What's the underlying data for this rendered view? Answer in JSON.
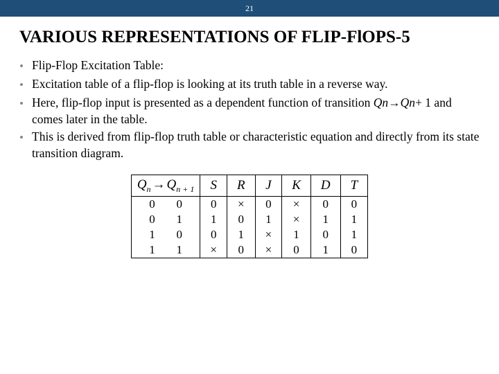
{
  "header": {
    "page_number": "21"
  },
  "title": "VARIOUS REPRESENTATIONS OF FLIP-FlOPS-5",
  "bullets": [
    {
      "bold": true,
      "text": "Flip-Flop Excitation Table:"
    },
    {
      "bold": false,
      "text": "Excitation table of a flip-flop is looking at its truth table in a reverse way."
    },
    {
      "bold": false,
      "html": "Here, flip-flop input is presented as a dependent function of transition <span class=\"ital\">Qn</span>→<span class=\"ital\">Qn</span>+ 1 and comes later in the table."
    },
    {
      "bold": false,
      "text": "This is derived from flip-flop truth table or characteristic equation and directly from its state transition diagram."
    }
  ],
  "table": {
    "type": "table",
    "columns": [
      "Qn → Qn+1",
      "S",
      "R",
      "J",
      "K",
      "D",
      "T"
    ],
    "transition_pairs": [
      [
        "0",
        "0"
      ],
      [
        "0",
        "1"
      ],
      [
        "1",
        "0"
      ],
      [
        "1",
        "1"
      ]
    ],
    "rows": [
      [
        "0",
        "×",
        "0",
        "×",
        "0",
        "0"
      ],
      [
        "1",
        "0",
        "1",
        "×",
        "1",
        "1"
      ],
      [
        "0",
        "1",
        "×",
        "1",
        "0",
        "1"
      ],
      [
        "×",
        "0",
        "×",
        "0",
        "1",
        "0"
      ]
    ],
    "border_color": "#000000",
    "font_family": "Times New Roman",
    "header_fontsize": 19,
    "cell_fontsize": 17
  },
  "colors": {
    "topbar_bg": "#1f4e79",
    "topbar_text": "#ffffff",
    "body_bg": "#ffffff",
    "text": "#000000",
    "bullet_dot": "#888888"
  }
}
